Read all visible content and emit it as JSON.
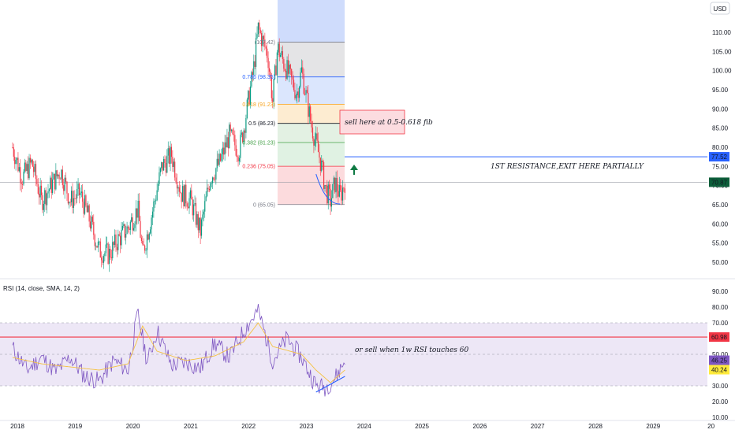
{
  "currency_button": "USD",
  "price_axis": {
    "ticks": [
      "110.00",
      "105.00",
      "100.00",
      "95.00",
      "90.00",
      "85.00",
      "80.00",
      "75.00",
      "70.00",
      "65.00",
      "60.00",
      "55.00",
      "50.00"
    ],
    "tick_values": [
      110,
      105,
      100,
      95,
      90,
      85,
      80,
      75,
      70,
      65,
      60,
      55,
      50
    ],
    "current_price_label": "70.87",
    "current_price": 70.87,
    "resistance_label": "77.52",
    "resistance_price": 77.52
  },
  "fib_levels": [
    {
      "label": "(107.42)",
      "ratio": "1",
      "value": 107.42,
      "color": "#787b86"
    },
    {
      "label": "0.786 (98.35)",
      "ratio": "0.786",
      "value": 98.35,
      "color": "#2962ff"
    },
    {
      "label": "0.618 (91.23)",
      "ratio": "0.618",
      "value": 91.23,
      "color": "#f7a21b"
    },
    {
      "label": "0.5 (86.23)",
      "ratio": "0.5",
      "value": 86.23,
      "color": "#131722"
    },
    {
      "label": "0.382 (81.23)",
      "ratio": "0.382",
      "value": 81.23,
      "color": "#43a047"
    },
    {
      "label": "0.236 (75.05)",
      "ratio": "0.236",
      "value": 75.05,
      "color": "#f23645"
    },
    {
      "label": "0 (65.05)",
      "ratio": "0",
      "value": 65.05,
      "color": "#787b86"
    }
  ],
  "annotations": {
    "sell_fib": "sell here at 0.5-0.618 fib",
    "resistance": "1ST RESISTANCE,EXIT HERE PARTIALLY",
    "rsi_note": "or sell when 1w RSI touches 60"
  },
  "rsi": {
    "title": "RSI (14, close, SMA, 14, 2)",
    "ticks": [
      "90.00",
      "80.00",
      "70.00",
      "60.00",
      "50.00",
      "40.00",
      "30.00",
      "20.00",
      "10.00"
    ],
    "tick_values": [
      90,
      80,
      70,
      60,
      50,
      40,
      30,
      20,
      10
    ],
    "level_label": "60.98",
    "level_value": 60.98,
    "rsi_label": "46.25",
    "rsi_value": 46.25,
    "sma_label": "40.24",
    "sma_value": 40.24,
    "upper_band": 70,
    "middle_band": 50,
    "lower_band": 30
  },
  "time_axis": {
    "labels": [
      "2018",
      "2019",
      "2020",
      "2021",
      "2022",
      "2023",
      "2024",
      "2025",
      "2026",
      "2027",
      "2028",
      "2029",
      "20"
    ]
  },
  "colors": {
    "up": "#089981",
    "down": "#f23645",
    "rsi_line": "#7e57c2",
    "rsi_sma": "#f5c242",
    "rsi_band_fill": "#ede7f6",
    "resistance_line": "#2962ff",
    "level_line": "#f23645",
    "current_price_bg": "#0d5e3a",
    "rsi_label_bg": "#7e57c2",
    "sma_label_bg": "#ffeb3b",
    "level_label_bg": "#f23645",
    "resistance_label_bg": "#2962ff"
  },
  "chart_data": {
    "type": "candlestick",
    "timeframe_note": "weekly",
    "x_range": [
      "2018",
      "2030"
    ],
    "y_range": [
      48,
      114
    ],
    "price_path": [
      [
        "2017-12",
        80
      ],
      [
        "2018-02",
        72
      ],
      [
        "2018-04",
        76
      ],
      [
        "2018-06",
        66
      ],
      [
        "2018-08",
        70
      ],
      [
        "2018-10",
        74
      ],
      [
        "2018-12",
        66
      ],
      [
        "2019-02",
        68
      ],
      [
        "2019-04",
        61
      ],
      [
        "2019-06",
        53
      ],
      [
        "2019-08",
        52
      ],
      [
        "2019-10",
        56
      ],
      [
        "2019-12",
        59
      ],
      [
        "2020-02",
        64
      ],
      [
        "2020-03",
        52
      ],
      [
        "2020-05",
        63
      ],
      [
        "2020-07",
        75
      ],
      [
        "2020-09",
        78
      ],
      [
        "2020-11",
        68
      ],
      [
        "2021-01",
        66
      ],
      [
        "2021-03",
        58
      ],
      [
        "2021-05",
        72
      ],
      [
        "2021-07",
        76
      ],
      [
        "2021-09",
        83
      ],
      [
        "2021-11",
        79
      ],
      [
        "2021-12",
        85
      ],
      [
        "2022-02",
        100
      ],
      [
        "2022-03",
        111
      ],
      [
        "2022-05",
        104
      ],
      [
        "2022-06",
        92
      ],
      [
        "2022-07",
        106
      ],
      [
        "2022-09",
        100
      ],
      [
        "2022-11",
        94
      ],
      [
        "2022-12",
        100
      ],
      [
        "2023-02",
        86
      ],
      [
        "2023-04",
        76
      ],
      [
        "2023-05",
        69
      ],
      [
        "2023-06",
        66
      ],
      [
        "2023-07",
        71
      ],
      [
        "2023-08",
        67
      ],
      [
        "2023-09",
        71
      ]
    ],
    "rsi_path": [
      [
        "2017-12",
        54
      ],
      [
        "2018-03",
        40
      ],
      [
        "2018-06",
        48
      ],
      [
        "2018-09",
        39
      ],
      [
        "2018-12",
        48
      ],
      [
        "2019-03",
        36
      ],
      [
        "2019-06",
        33
      ],
      [
        "2019-09",
        46
      ],
      [
        "2019-12",
        40
      ],
      [
        "2020-02",
        76
      ],
      [
        "2020-04",
        45
      ],
      [
        "2020-06",
        65
      ],
      [
        "2020-09",
        43
      ],
      [
        "2020-12",
        45
      ],
      [
        "2021-03",
        41
      ],
      [
        "2021-06",
        57
      ],
      [
        "2021-09",
        48
      ],
      [
        "2021-12",
        65
      ],
      [
        "2022-03",
        78
      ],
      [
        "2022-06",
        46
      ],
      [
        "2022-09",
        60
      ],
      [
        "2022-12",
        48
      ],
      [
        "2023-03",
        30
      ],
      [
        "2023-05",
        29
      ],
      [
        "2023-07",
        35
      ],
      [
        "2023-09",
        46
      ]
    ],
    "rsi_sma_path": [
      [
        "2017-12",
        48
      ],
      [
        "2018-06",
        44
      ],
      [
        "2018-12",
        42
      ],
      [
        "2019-06",
        40
      ],
      [
        "2019-12",
        44
      ],
      [
        "2020-03",
        68
      ],
      [
        "2020-06",
        52
      ],
      [
        "2020-12",
        46
      ],
      [
        "2021-06",
        49
      ],
      [
        "2021-12",
        58
      ],
      [
        "2022-03",
        70
      ],
      [
        "2022-06",
        55
      ],
      [
        "2022-12",
        50
      ],
      [
        "2023-03",
        40
      ],
      [
        "2023-06",
        32
      ],
      [
        "2023-09",
        40
      ]
    ]
  }
}
